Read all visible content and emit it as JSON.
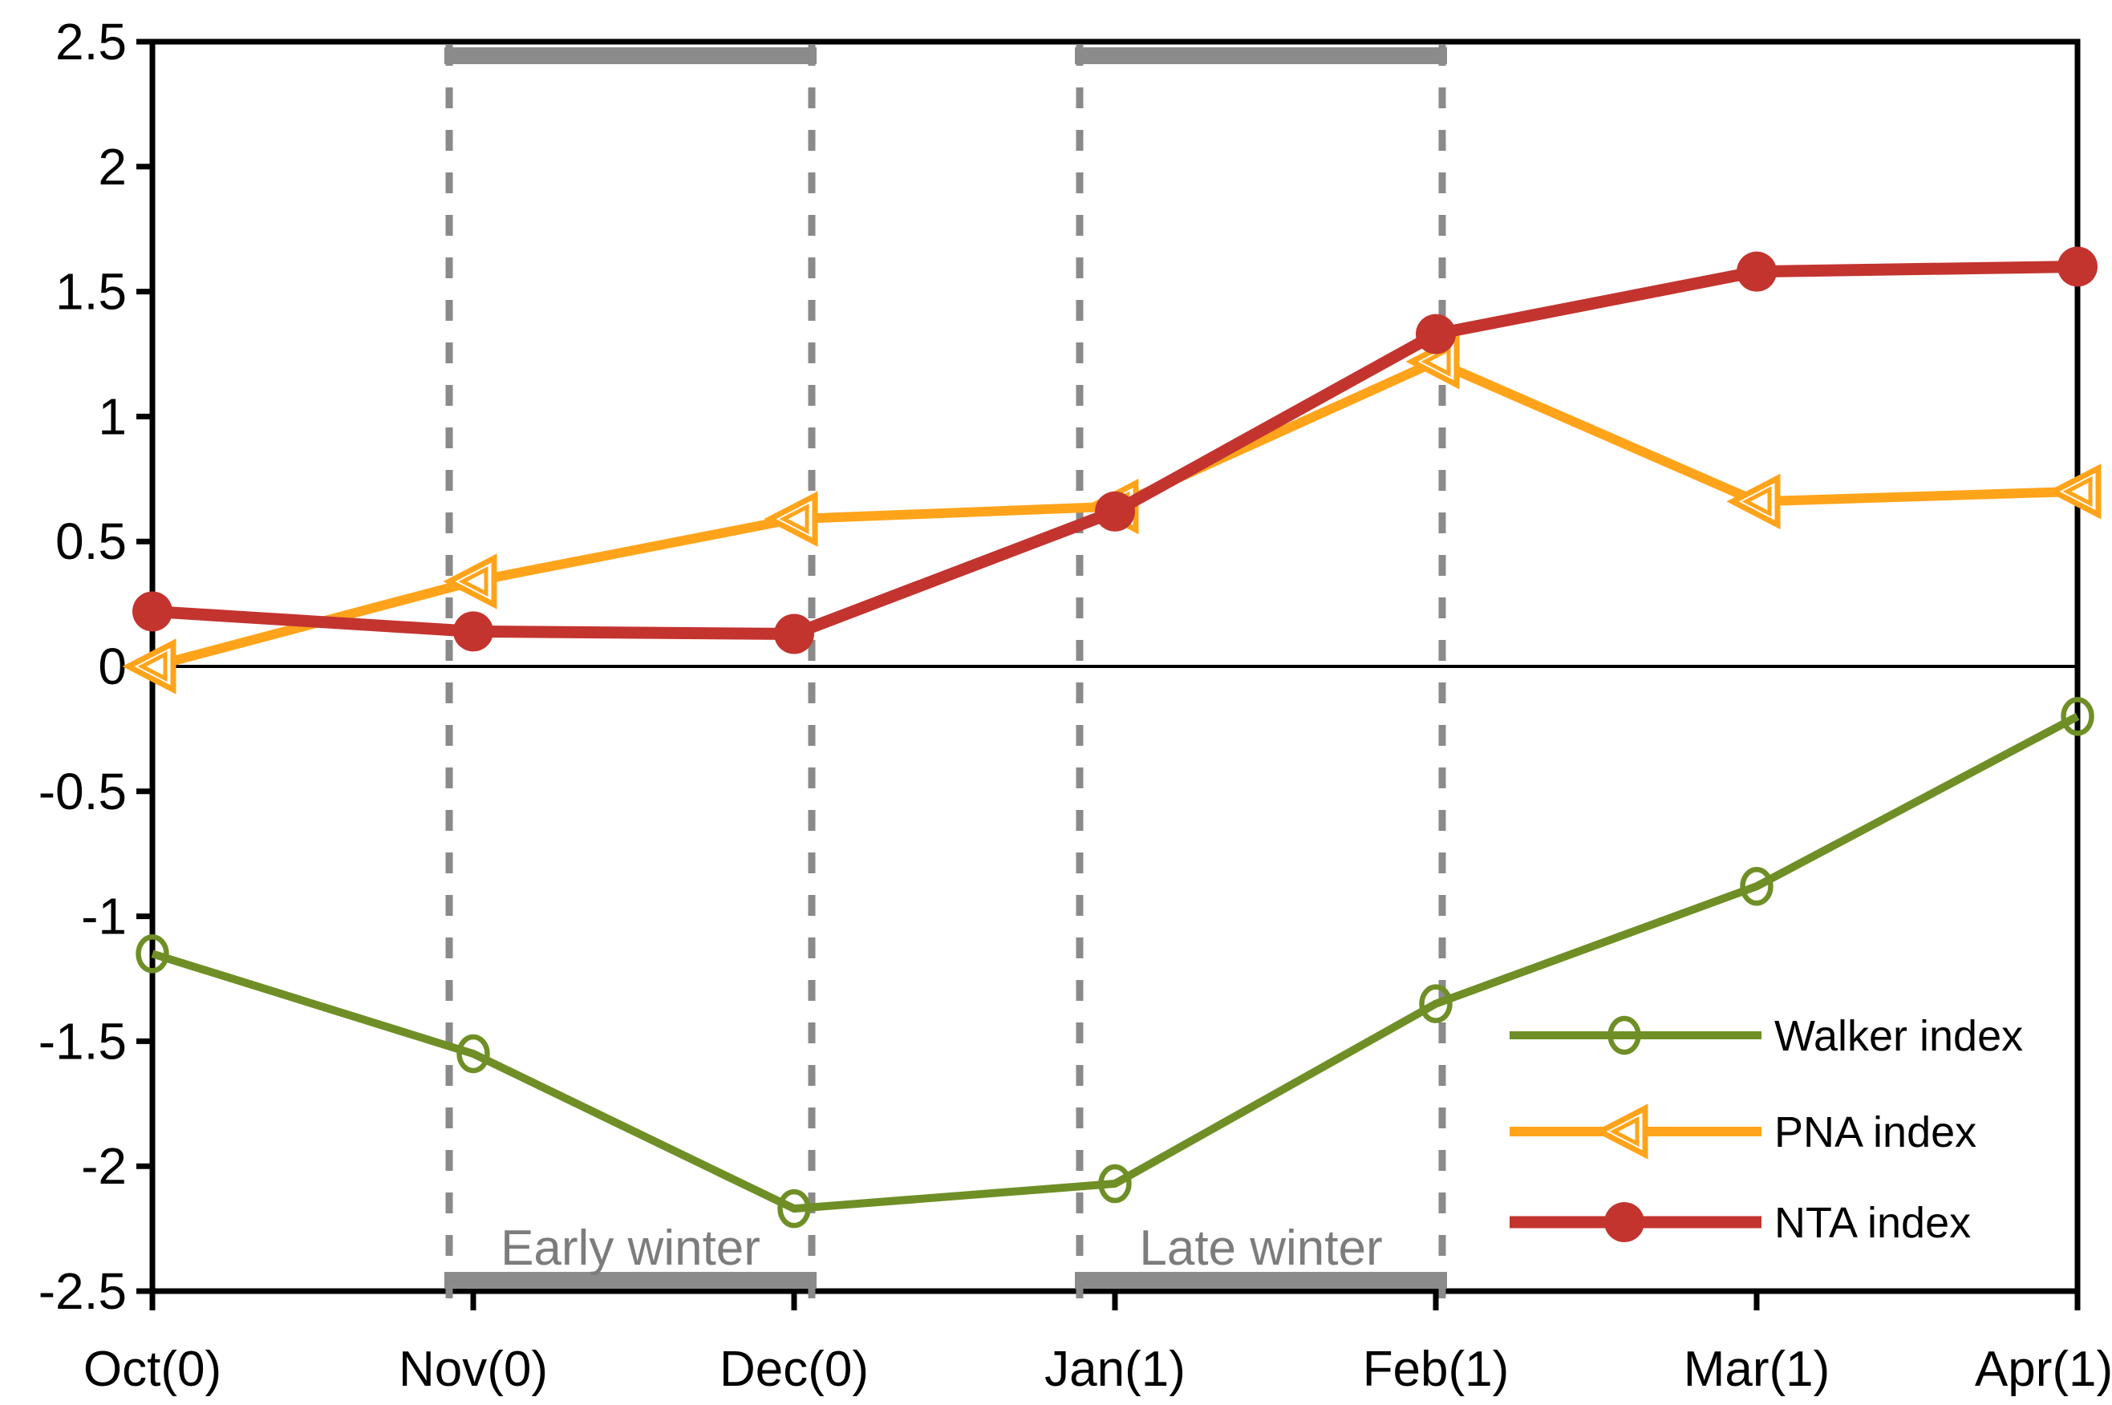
{
  "chart_data": {
    "type": "line",
    "title": "",
    "xlabel": "",
    "ylabel": "",
    "categories": [
      "Oct(0)",
      "Nov(0)",
      "Dec(0)",
      "Jan(1)",
      "Feb(1)",
      "Mar(1)",
      "Apr(1)"
    ],
    "ylim": [
      -2.5,
      2.5
    ],
    "ytick_labels": [
      "2.5",
      "2",
      "1.5",
      "1",
      "0.5",
      "0",
      "-0.5",
      "-1",
      "-1.5",
      "-2",
      "-2.5"
    ],
    "ytick_values": [
      2.5,
      2,
      1.5,
      1,
      0.5,
      0,
      -0.5,
      -1,
      -1.5,
      -2,
      -2.5
    ],
    "grid": false,
    "zero_line": true,
    "legend_position": "bottom-right",
    "series": [
      {
        "name": "Walker index",
        "color": "#6F8F26",
        "marker": "open-circle",
        "line_width": 10,
        "values": [
          -1.15,
          -1.55,
          -2.17,
          -2.07,
          -1.35,
          -0.88,
          -0.2
        ]
      },
      {
        "name": "PNA index",
        "color": "#FFA41A",
        "marker": "open-left-triangle",
        "line_width": 12,
        "values": [
          0.0,
          0.34,
          0.59,
          0.64,
          1.22,
          0.66,
          0.7
        ]
      },
      {
        "name": "NTA index",
        "color": "#C3342F",
        "marker": "filled-circle",
        "line_width": 15,
        "values": [
          0.22,
          0.14,
          0.13,
          0.62,
          1.33,
          1.58,
          1.6
        ]
      }
    ],
    "regions": [
      {
        "label": "Early winter",
        "from": 0.925,
        "to": 2.055
      },
      {
        "label": "Late winter",
        "from": 2.89,
        "to": 4.02
      }
    ],
    "region_style": {
      "bar_color": "#8B8B8B",
      "dashed_line_color": "#8A8A8A",
      "label_color": "#7C7C7C"
    },
    "axis_color": "#000000"
  }
}
